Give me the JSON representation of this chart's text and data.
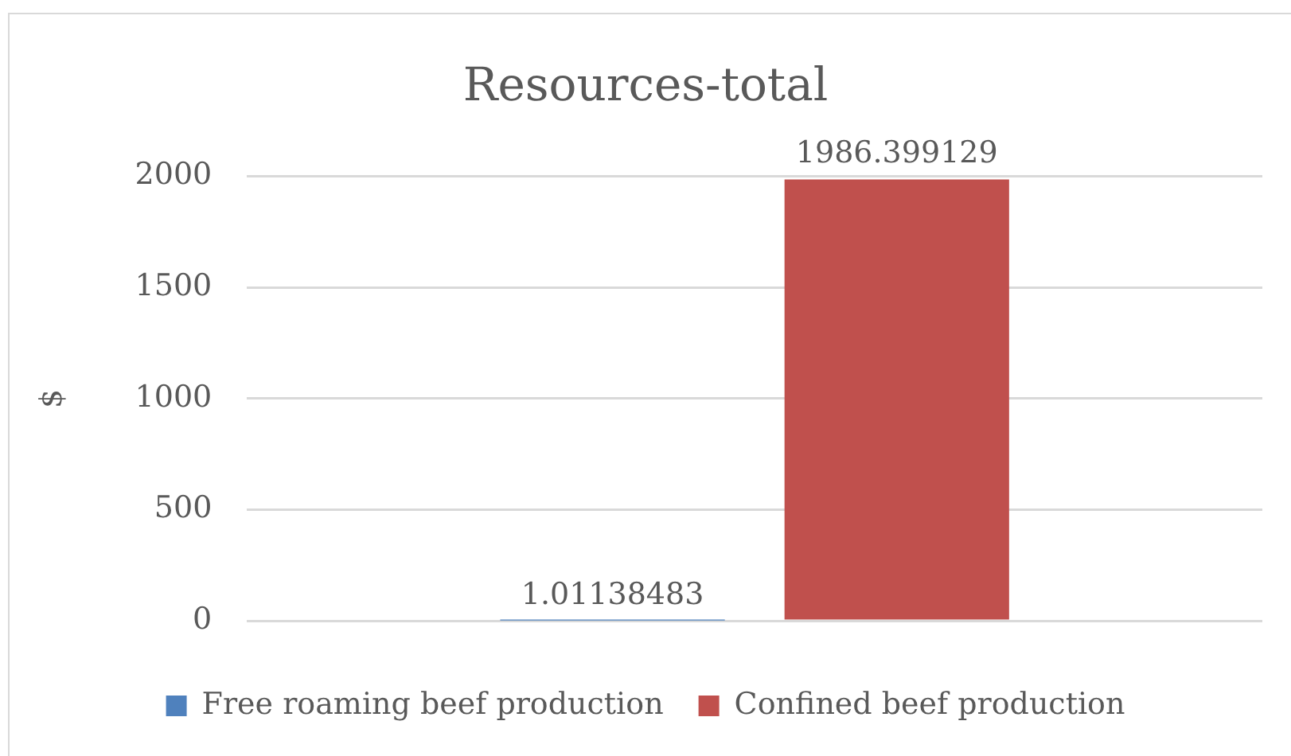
{
  "chart_data": {
    "type": "bar",
    "title": "Resources-total",
    "ylabel": "$",
    "categories": [
      null
    ],
    "series": [
      {
        "name": "Free roaming beef production",
        "color": "#4f81bd",
        "values": [
          1.01138483
        ]
      },
      {
        "name": "Confined beef production",
        "color": "#c0504d",
        "values": [
          1986.399129
        ]
      }
    ],
    "ylim": [
      0,
      2000
    ],
    "yticks": [
      0,
      500,
      1000,
      1500,
      2000
    ],
    "grid": "y",
    "legend": "bottom",
    "data_labels": true
  }
}
